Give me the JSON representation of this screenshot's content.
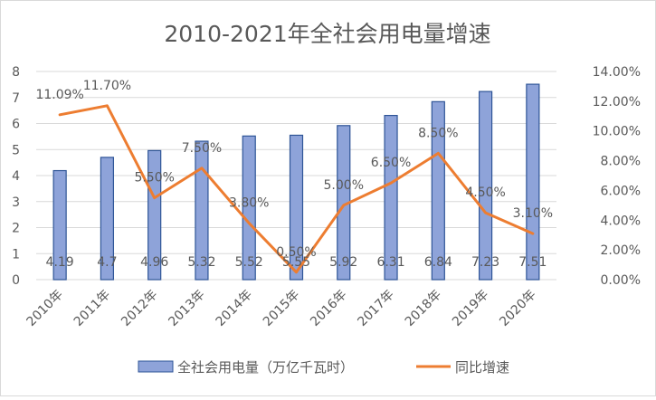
{
  "chart_data": {
    "type": "bar",
    "title": "2010-2021年全社会用电量增速",
    "categories": [
      "2010年",
      "2011年",
      "2012年",
      "2013年",
      "2014年",
      "2015年",
      "2016年",
      "2017年",
      "2018年",
      "2019年",
      "2020年"
    ],
    "series": [
      {
        "name": "全社会用电量（万亿千瓦时）",
        "type": "bar",
        "axis": "left",
        "color": "#8EA3D9",
        "values": [
          4.19,
          4.7,
          4.96,
          5.32,
          5.52,
          5.55,
          5.92,
          6.31,
          6.84,
          7.23,
          7.51
        ],
        "labels": [
          "4.19",
          "4.7",
          "4.96",
          "5.32",
          "5.52",
          "5.55",
          "5.92",
          "6.31",
          "6.84",
          "7.23",
          "7.51"
        ]
      },
      {
        "name": "同比增速",
        "type": "line",
        "axis": "right",
        "color": "#ED7D31",
        "values": [
          11.09,
          11.7,
          5.5,
          7.5,
          3.8,
          0.5,
          5.0,
          6.5,
          8.5,
          4.5,
          3.1
        ],
        "labels": [
          "11.09%",
          "11.70%",
          "5.50%",
          "7.50%",
          "3.80%",
          "0.50%",
          "5.00%",
          "6.50%",
          "8.50%",
          "4.50%",
          "3.10%"
        ]
      }
    ],
    "left_axis": {
      "min": 0,
      "max": 8,
      "ticks": [
        "0",
        "1",
        "2",
        "3",
        "4",
        "5",
        "6",
        "7",
        "8"
      ]
    },
    "right_axis": {
      "min": 0,
      "max": 14,
      "ticks": [
        "0.00%",
        "2.00%",
        "4.00%",
        "6.00%",
        "8.00%",
        "10.00%",
        "12.00%",
        "14.00%"
      ]
    },
    "grid": true,
    "legend_position": "bottom"
  }
}
